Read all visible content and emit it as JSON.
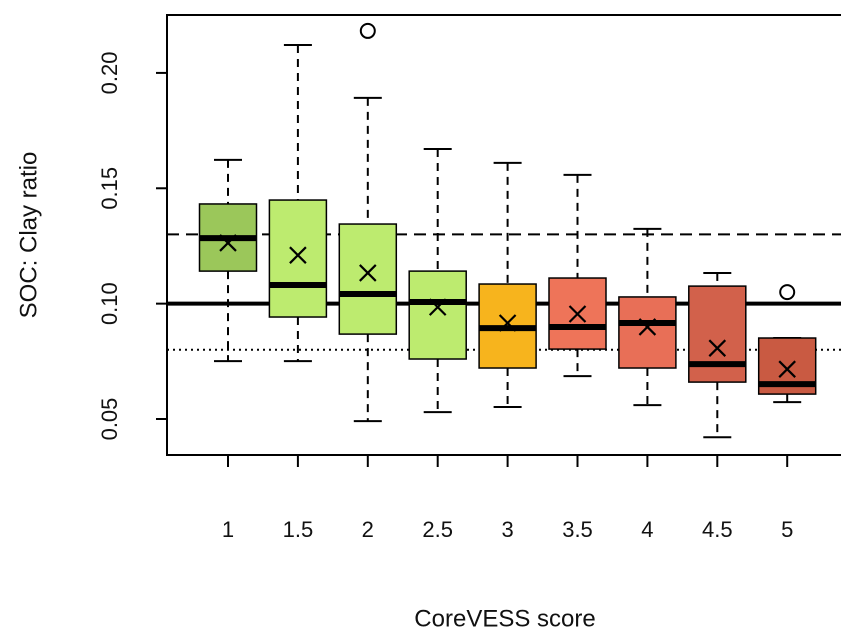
{
  "chart_data": {
    "type": "boxplot",
    "x_label": "CoreVESS score",
    "y_label": "SOC: Clay ratio",
    "categories": [
      "1",
      "1.5",
      "2",
      "2.5",
      "3",
      "3.5",
      "4",
      "4.5",
      "5"
    ],
    "boxes": [
      {
        "min": 0.0751,
        "q1": 0.1141,
        "median": 0.1284,
        "q3": 0.1432,
        "max": 0.1623,
        "mean": 0.1263,
        "outliers": [],
        "color": "#9bc75a"
      },
      {
        "min": 0.0751,
        "q1": 0.0942,
        "median": 0.1081,
        "q3": 0.1449,
        "max": 0.2121,
        "mean": 0.121,
        "outliers": [],
        "color": "#bdeb6f"
      },
      {
        "min": 0.0491,
        "q1": 0.0868,
        "median": 0.1042,
        "q3": 0.1345,
        "max": 0.1892,
        "mean": 0.1133,
        "outliers": [
          0.2182
        ],
        "color": "#bdeb6f"
      },
      {
        "min": 0.053,
        "q1": 0.076,
        "median": 0.1007,
        "q3": 0.1141,
        "max": 0.167,
        "mean": 0.0985,
        "outliers": [],
        "color": "#bdeb6f"
      },
      {
        "min": 0.0552,
        "q1": 0.0721,
        "median": 0.0894,
        "q3": 0.1085,
        "max": 0.161,
        "mean": 0.0916,
        "outliers": [],
        "color": "#f7b41d"
      },
      {
        "min": 0.0686,
        "q1": 0.0803,
        "median": 0.0899,
        "q3": 0.1111,
        "max": 0.1558,
        "mean": 0.0955,
        "outliers": [],
        "color": "#ee7459"
      },
      {
        "min": 0.056,
        "q1": 0.0721,
        "median": 0.0916,
        "q3": 0.1029,
        "max": 0.1324,
        "mean": 0.0899,
        "outliers": [],
        "color": "#e86f57"
      },
      {
        "min": 0.0421,
        "q1": 0.066,
        "median": 0.0738,
        "q3": 0.1076,
        "max": 0.1133,
        "mean": 0.0807,
        "outliers": [],
        "color": "#d2614b"
      },
      {
        "min": 0.0573,
        "q1": 0.0608,
        "median": 0.0651,
        "q3": 0.0851,
        "max": 0.0851,
        "mean": 0.0716,
        "outliers": [
          0.105
        ],
        "color": "#c95a42"
      }
    ],
    "reference_lines": [
      {
        "value": 0.13,
        "style": "dashed"
      },
      {
        "value": 0.1,
        "style": "solid"
      },
      {
        "value": 0.08,
        "style": "dotted"
      }
    ],
    "ylim": [
      0.0344,
      0.2251
    ],
    "yticks": [
      0.05,
      {
        "value": 0.1,
        "label": "0.10"
      },
      0.15,
      {
        "value": 0.2,
        "label": "0.20"
      }
    ]
  }
}
